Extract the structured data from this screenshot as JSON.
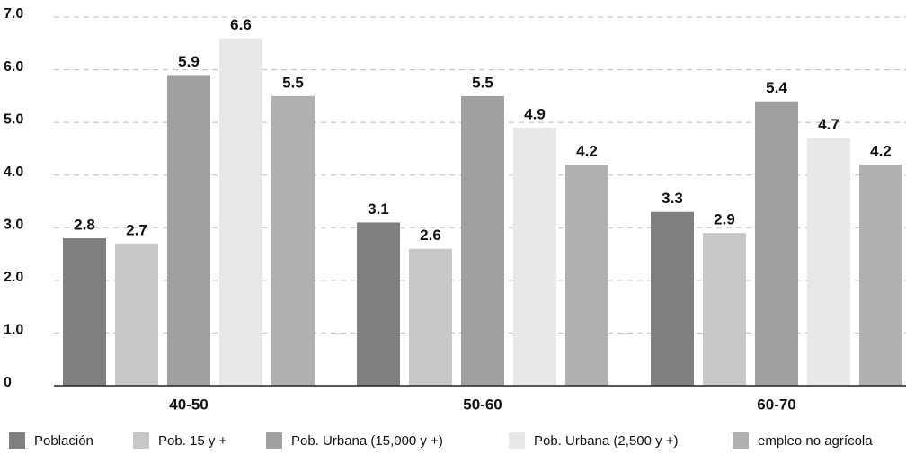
{
  "chart_data": {
    "type": "bar",
    "categories": [
      "40-50",
      "50-60",
      "60-70"
    ],
    "series": [
      {
        "name": "Población",
        "color": "#808080",
        "values": [
          2.8,
          3.1,
          3.3
        ]
      },
      {
        "name": "Pob. 15 y +",
        "color": "#c8c8c8",
        "values": [
          2.7,
          2.6,
          2.9
        ]
      },
      {
        "name": "Pob. Urbana (15,000 y +)",
        "color": "#a0a0a0",
        "values": [
          5.9,
          5.5,
          5.4
        ]
      },
      {
        "name": "Pob. Urbana (2,500 y +)",
        "color": "#e8e8e8",
        "values": [
          6.6,
          4.9,
          4.7
        ]
      },
      {
        "name": "empleo no agrícola",
        "color": "#b0b0b0",
        "values": [
          5.5,
          4.2,
          4.2
        ]
      }
    ],
    "ylim": [
      0,
      7
    ],
    "yticks": [
      0,
      {
        "value": 1,
        "label": "1.0"
      },
      {
        "value": 2,
        "label": "2.0"
      },
      {
        "value": 3,
        "label": "3.0"
      },
      {
        "value": 4,
        "label": "4.0"
      },
      {
        "value": 5,
        "label": "5.0"
      },
      {
        "value": 6,
        "label": "6.0"
      },
      {
        "value": 7,
        "label": "7.0"
      }
    ],
    "grid": true,
    "legend": "bottom"
  }
}
